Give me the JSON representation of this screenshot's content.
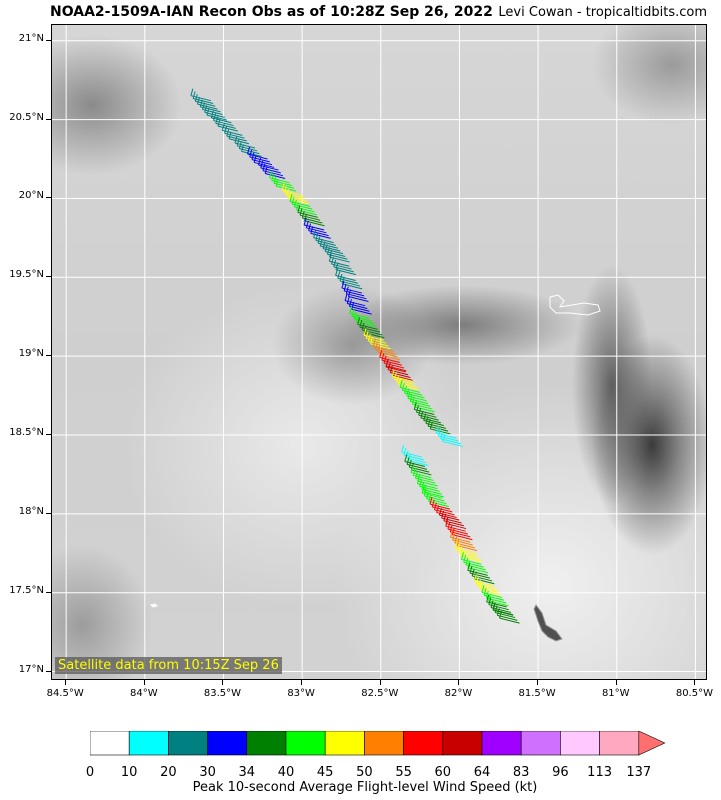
{
  "header": {
    "title": "NOAA2-1509A-IAN Recon Obs as of 10:28Z Sep 26, 2022",
    "credit": "Levi Cowan - tropicaltidbits.com"
  },
  "map": {
    "satellite_label": "Satellite data from 10:15Z Sep 26",
    "lat_labels": [
      "21°N",
      "20.5°N",
      "20°N",
      "19.5°N",
      "19°N",
      "18.5°N",
      "18°N",
      "17.5°N",
      "17°N"
    ],
    "lon_labels": [
      "84.5°W",
      "84°W",
      "83.5°W",
      "83°W",
      "82.5°W",
      "82°W",
      "81.5°W",
      "81°W",
      "80.5°W"
    ]
  },
  "colorbar": {
    "label": "Peak 10-second Average Flight-level Wind Speed (kt)",
    "ticks": [
      "0",
      "10",
      "20",
      "30",
      "34",
      "40",
      "45",
      "50",
      "55",
      "60",
      "64",
      "83",
      "96",
      "113",
      "137"
    ],
    "colors": [
      "#ffffff",
      "#00ffff",
      "#008080",
      "#0000ff",
      "#008000",
      "#00ff00",
      "#ffff00",
      "#ff8000",
      "#ff0000",
      "#c80000",
      "#a000ff",
      "#d070ff",
      "#ffc8ff",
      "#ffa8c0"
    ],
    "extend_color": "#ff6f6f"
  },
  "flight_track": {
    "obs": [
      {
        "lat": 20.62,
        "lon": -83.58,
        "wind": 20
      },
      {
        "lat": 20.55,
        "lon": -83.52,
        "wind": 20
      },
      {
        "lat": 20.48,
        "lon": -83.45,
        "wind": 20
      },
      {
        "lat": 20.4,
        "lon": -83.38,
        "wind": 20
      },
      {
        "lat": 20.32,
        "lon": -83.3,
        "wind": 20
      },
      {
        "lat": 20.25,
        "lon": -83.22,
        "wind": 30
      },
      {
        "lat": 20.18,
        "lon": -83.15,
        "wind": 30
      },
      {
        "lat": 20.1,
        "lon": -83.08,
        "wind": 40
      },
      {
        "lat": 20.02,
        "lon": -83.0,
        "wind": 45
      },
      {
        "lat": 19.95,
        "lon": -82.95,
        "wind": 40
      },
      {
        "lat": 19.88,
        "lon": -82.9,
        "wind": 34
      },
      {
        "lat": 19.8,
        "lon": -82.86,
        "wind": 30
      },
      {
        "lat": 19.72,
        "lon": -82.8,
        "wind": 20
      },
      {
        "lat": 19.65,
        "lon": -82.74,
        "wind": 20
      },
      {
        "lat": 19.57,
        "lon": -82.7,
        "wind": 20
      },
      {
        "lat": 19.48,
        "lon": -82.66,
        "wind": 20
      },
      {
        "lat": 19.4,
        "lon": -82.62,
        "wind": 30
      },
      {
        "lat": 19.32,
        "lon": -82.6,
        "wind": 30
      },
      {
        "lat": 19.24,
        "lon": -82.57,
        "wind": 40
      },
      {
        "lat": 19.17,
        "lon": -82.52,
        "wind": 34
      },
      {
        "lat": 19.1,
        "lon": -82.48,
        "wind": 45
      },
      {
        "lat": 19.03,
        "lon": -82.42,
        "wind": 50
      },
      {
        "lat": 18.96,
        "lon": -82.38,
        "wind": 55
      },
      {
        "lat": 18.9,
        "lon": -82.34,
        "wind": 60
      },
      {
        "lat": 18.84,
        "lon": -82.3,
        "wind": 45
      },
      {
        "lat": 18.77,
        "lon": -82.25,
        "wind": 40
      },
      {
        "lat": 18.7,
        "lon": -82.2,
        "wind": 40
      },
      {
        "lat": 18.63,
        "lon": -82.16,
        "wind": 34
      },
      {
        "lat": 18.56,
        "lon": -82.1,
        "wind": 34
      },
      {
        "lat": 18.48,
        "lon": -82.02,
        "wind": 10
      },
      {
        "lat": 18.36,
        "lon": -82.24,
        "wind": 10
      },
      {
        "lat": 18.3,
        "lon": -82.22,
        "wind": 34
      },
      {
        "lat": 18.23,
        "lon": -82.18,
        "wind": 40
      },
      {
        "lat": 18.16,
        "lon": -82.14,
        "wind": 40
      },
      {
        "lat": 18.1,
        "lon": -82.11,
        "wind": 40
      },
      {
        "lat": 18.03,
        "lon": -82.06,
        "wind": 55
      },
      {
        "lat": 17.96,
        "lon": -82.0,
        "wind": 60
      },
      {
        "lat": 17.89,
        "lon": -81.96,
        "wind": 55
      },
      {
        "lat": 17.82,
        "lon": -81.93,
        "wind": 50
      },
      {
        "lat": 17.75,
        "lon": -81.9,
        "wind": 45
      },
      {
        "lat": 17.68,
        "lon": -81.86,
        "wind": 40
      },
      {
        "lat": 17.61,
        "lon": -81.82,
        "wind": 34
      },
      {
        "lat": 17.54,
        "lon": -81.78,
        "wind": 45
      },
      {
        "lat": 17.47,
        "lon": -81.73,
        "wind": 40
      },
      {
        "lat": 17.41,
        "lon": -81.7,
        "wind": 34
      },
      {
        "lat": 17.36,
        "lon": -81.66,
        "wind": 34
      }
    ]
  }
}
